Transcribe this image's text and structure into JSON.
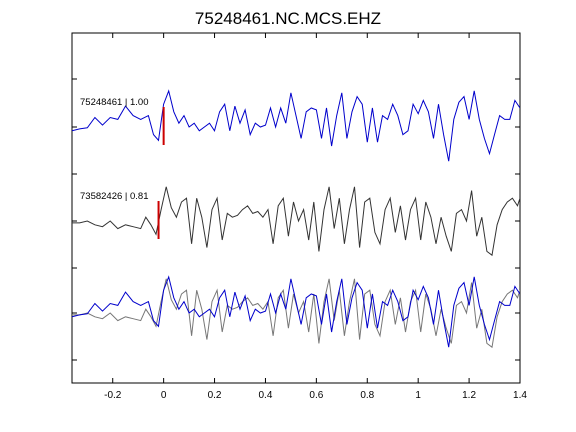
{
  "chart_data": {
    "type": "line",
    "title": "75248461.NC.MCS.EHZ",
    "xlabel": "",
    "ylabel": "",
    "xlim": [
      -0.36,
      1.4
    ],
    "x_ticks": [
      -0.2,
      0,
      0.2,
      0.4,
      0.6,
      0.8,
      1,
      1.2,
      1.4
    ],
    "x_tick_labels": [
      "-0.2",
      "0",
      "0.2",
      "0.4",
      "0.6",
      "0.8",
      "1",
      "1.2",
      "1.4"
    ],
    "grid": false,
    "traces": [
      {
        "label": "75248461 | 1.00",
        "color": "#0000cc",
        "pick_time": 0.0,
        "pick_color": "#cc0000",
        "points": [
          [
            -0.36,
            -0.1
          ],
          [
            -0.33,
            -0.05
          ],
          [
            -0.3,
            -0.02
          ],
          [
            -0.27,
            0.25
          ],
          [
            -0.24,
            0.05
          ],
          [
            -0.21,
            0.25
          ],
          [
            -0.18,
            0.2
          ],
          [
            -0.15,
            0.55
          ],
          [
            -0.12,
            0.3
          ],
          [
            -0.09,
            0.2
          ],
          [
            -0.06,
            0.3
          ],
          [
            -0.04,
            -0.2
          ],
          [
            -0.02,
            -0.35
          ],
          [
            0.0,
            0.6
          ],
          [
            0.02,
            0.95
          ],
          [
            0.04,
            0.4
          ],
          [
            0.06,
            0.1
          ],
          [
            0.08,
            0.3
          ],
          [
            0.1,
            0.0
          ],
          [
            0.12,
            0.1
          ],
          [
            0.14,
            -0.1
          ],
          [
            0.16,
            0.0
          ],
          [
            0.18,
            0.1
          ],
          [
            0.2,
            -0.1
          ],
          [
            0.22,
            0.4
          ],
          [
            0.24,
            0.6
          ],
          [
            0.26,
            -0.1
          ],
          [
            0.28,
            0.55
          ],
          [
            0.3,
            0.1
          ],
          [
            0.32,
            0.45
          ],
          [
            0.34,
            -0.2
          ],
          [
            0.36,
            0.1
          ],
          [
            0.38,
            0.0
          ],
          [
            0.4,
            0.05
          ],
          [
            0.42,
            0.5
          ],
          [
            0.44,
            0.0
          ],
          [
            0.46,
            0.5
          ],
          [
            0.48,
            0.1
          ],
          [
            0.5,
            0.9
          ],
          [
            0.52,
            0.3
          ],
          [
            0.54,
            -0.3
          ],
          [
            0.56,
            0.4
          ],
          [
            0.58,
            0.5
          ],
          [
            0.6,
            0.45
          ],
          [
            0.62,
            -0.3
          ],
          [
            0.64,
            0.5
          ],
          [
            0.66,
            -0.5
          ],
          [
            0.68,
            0.3
          ],
          [
            0.7,
            0.9
          ],
          [
            0.72,
            -0.3
          ],
          [
            0.74,
            0.4
          ],
          [
            0.76,
            0.8
          ],
          [
            0.78,
            0.6
          ],
          [
            0.8,
            -0.4
          ],
          [
            0.82,
            0.5
          ],
          [
            0.84,
            -0.4
          ],
          [
            0.86,
            0.3
          ],
          [
            0.88,
            0.2
          ],
          [
            0.9,
            0.6
          ],
          [
            0.92,
            0.3
          ],
          [
            0.94,
            -0.2
          ],
          [
            0.96,
            -0.1
          ],
          [
            0.98,
            0.6
          ],
          [
            1.0,
            0.35
          ],
          [
            1.02,
            0.7
          ],
          [
            1.04,
            0.4
          ],
          [
            1.06,
            -0.3
          ],
          [
            1.08,
            0.6
          ],
          [
            1.1,
            -0.2
          ],
          [
            1.12,
            -0.9
          ],
          [
            1.14,
            0.2
          ],
          [
            1.16,
            0.65
          ],
          [
            1.18,
            0.8
          ],
          [
            1.2,
            0.2
          ],
          [
            1.22,
            0.95
          ],
          [
            1.24,
            0.2
          ],
          [
            1.26,
            -0.3
          ],
          [
            1.28,
            -0.7
          ],
          [
            1.3,
            -0.2
          ],
          [
            1.32,
            0.3
          ],
          [
            1.34,
            0.2
          ],
          [
            1.36,
            0.2
          ],
          [
            1.38,
            0.7
          ],
          [
            1.4,
            0.5
          ]
        ]
      },
      {
        "label": "73582426 | 0.81",
        "color": "#333333",
        "pick_time": -0.02,
        "pick_color": "#cc0000",
        "points": [
          [
            -0.36,
            -0.05
          ],
          [
            -0.33,
            -0.05
          ],
          [
            -0.3,
            0.0
          ],
          [
            -0.27,
            -0.1
          ],
          [
            -0.24,
            -0.15
          ],
          [
            -0.21,
            0.0
          ],
          [
            -0.18,
            -0.2
          ],
          [
            -0.15,
            -0.1
          ],
          [
            -0.12,
            -0.15
          ],
          [
            -0.09,
            -0.2
          ],
          [
            -0.07,
            0.1
          ],
          [
            -0.05,
            -0.1
          ],
          [
            -0.03,
            -0.35
          ],
          [
            -0.01,
            0.3
          ],
          [
            0.01,
            0.9
          ],
          [
            0.03,
            0.35
          ],
          [
            0.05,
            0.1
          ],
          [
            0.07,
            0.5
          ],
          [
            0.09,
            0.6
          ],
          [
            0.11,
            -0.6
          ],
          [
            0.13,
            0.6
          ],
          [
            0.15,
            0.1
          ],
          [
            0.17,
            -0.7
          ],
          [
            0.19,
            0.3
          ],
          [
            0.21,
            0.6
          ],
          [
            0.23,
            -0.5
          ],
          [
            0.25,
            0.2
          ],
          [
            0.27,
            0.1
          ],
          [
            0.29,
            0.15
          ],
          [
            0.31,
            0.3
          ],
          [
            0.33,
            0.4
          ],
          [
            0.35,
            0.2
          ],
          [
            0.37,
            0.25
          ],
          [
            0.39,
            0.1
          ],
          [
            0.41,
            0.3
          ],
          [
            0.43,
            -0.6
          ],
          [
            0.45,
            0.4
          ],
          [
            0.47,
            0.6
          ],
          [
            0.49,
            -0.4
          ],
          [
            0.51,
            0.5
          ],
          [
            0.53,
            0.0
          ],
          [
            0.55,
            0.3
          ],
          [
            0.57,
            -0.5
          ],
          [
            0.59,
            0.5
          ],
          [
            0.61,
            -0.8
          ],
          [
            0.63,
            0.3
          ],
          [
            0.65,
            0.9
          ],
          [
            0.67,
            -0.2
          ],
          [
            0.69,
            0.6
          ],
          [
            0.71,
            -0.6
          ],
          [
            0.73,
            0.3
          ],
          [
            0.75,
            0.9
          ],
          [
            0.77,
            -0.7
          ],
          [
            0.79,
            0.5
          ],
          [
            0.81,
            0.6
          ],
          [
            0.83,
            -0.3
          ],
          [
            0.85,
            -0.6
          ],
          [
            0.87,
            0.3
          ],
          [
            0.89,
            0.6
          ],
          [
            0.91,
            -0.3
          ],
          [
            0.93,
            0.4
          ],
          [
            0.95,
            -0.5
          ],
          [
            0.97,
            0.3
          ],
          [
            0.99,
            0.6
          ],
          [
            1.01,
            -0.5
          ],
          [
            1.03,
            0.5
          ],
          [
            1.05,
            0.1
          ],
          [
            1.07,
            -0.6
          ],
          [
            1.09,
            0.1
          ],
          [
            1.11,
            -0.4
          ],
          [
            1.13,
            -0.8
          ],
          [
            1.15,
            0.2
          ],
          [
            1.17,
            0.3
          ],
          [
            1.19,
            0.0
          ],
          [
            1.21,
            0.8
          ],
          [
            1.23,
            -0.4
          ],
          [
            1.25,
            0.1
          ],
          [
            1.27,
            -0.8
          ],
          [
            1.29,
            -0.9
          ],
          [
            1.31,
            -0.1
          ],
          [
            1.33,
            0.3
          ],
          [
            1.35,
            0.5
          ],
          [
            1.37,
            0.6
          ],
          [
            1.39,
            0.4
          ],
          [
            1.4,
            0.6
          ]
        ]
      }
    ]
  }
}
